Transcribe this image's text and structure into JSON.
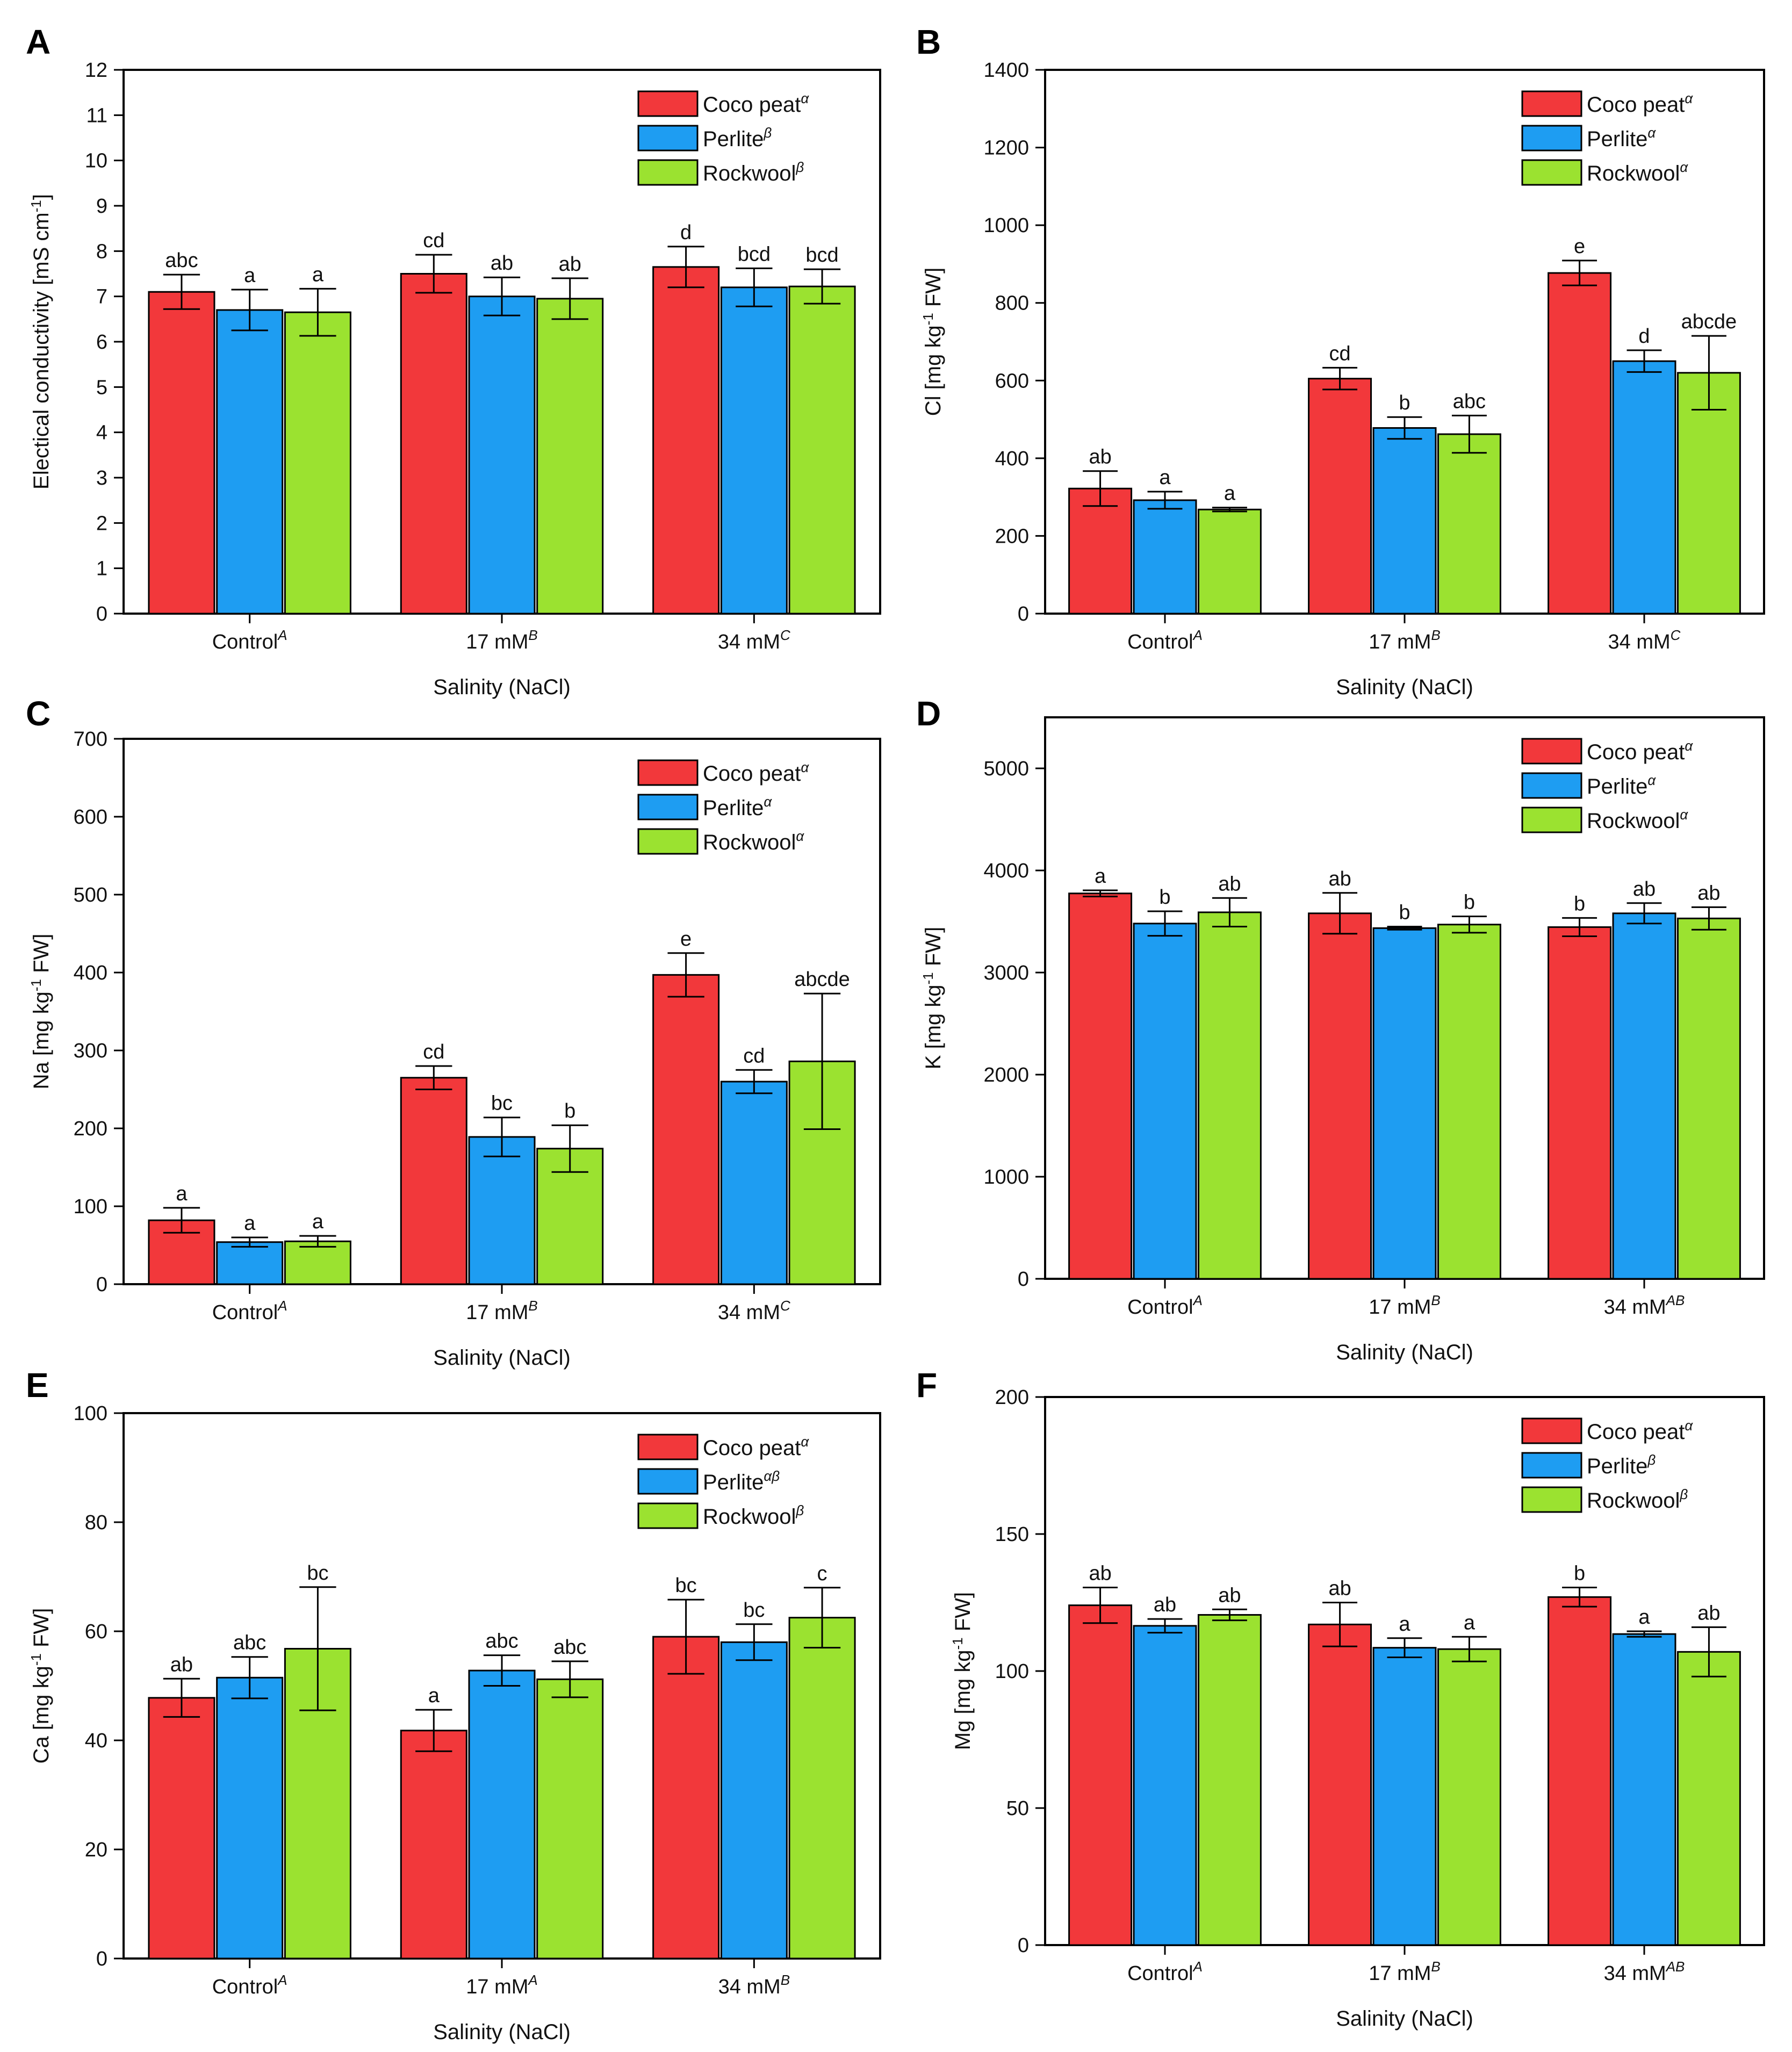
{
  "palette": {
    "coco": "#f2383b",
    "perlite": "#1e9df2",
    "rockwool": "#9be230"
  },
  "chart_data": [
    {
      "panel": "A",
      "type": "bar",
      "ylabel": "Electical conductivity [mS cm-1]",
      "ylabel_parts": [
        "Electical conductivity [mS cm",
        "-1",
        "]"
      ],
      "xlabel": "Salinity (NaCl)",
      "ylim": [
        0,
        12
      ],
      "yticks": [
        "0",
        "1",
        "2",
        "3",
        "4",
        "5",
        "6",
        "7",
        "8",
        "9",
        "10",
        "11",
        "12"
      ],
      "categories": [
        {
          "label": "Control",
          "sup": "A"
        },
        {
          "label": "17 mM",
          "sup": "B"
        },
        {
          "label": "34 mM",
          "sup": "C"
        }
      ],
      "series": [
        {
          "name": "Coco peat",
          "sup": "α",
          "values": [
            7.1,
            7.5,
            7.65
          ],
          "errors": [
            0.38,
            0.42,
            0.45
          ],
          "letters": [
            "abc",
            "cd",
            "d"
          ]
        },
        {
          "name": "Perlite",
          "sup": "β",
          "values": [
            6.7,
            7.0,
            7.2
          ],
          "errors": [
            0.45,
            0.42,
            0.42
          ],
          "letters": [
            "a",
            "ab",
            "bcd"
          ]
        },
        {
          "name": "Rockwool",
          "sup": "β",
          "values": [
            6.65,
            6.95,
            7.22
          ],
          "errors": [
            0.52,
            0.45,
            0.38
          ],
          "letters": [
            "a",
            "ab",
            "bcd"
          ]
        }
      ]
    },
    {
      "panel": "B",
      "type": "bar",
      "ylabel": "Cl [mg kg-1 FW]",
      "ylabel_parts": [
        "Cl [mg kg",
        "-1",
        " FW]"
      ],
      "xlabel": "Salinity (NaCl)",
      "ylim": [
        0,
        1400
      ],
      "yticks": [
        "0",
        "200",
        "400",
        "600",
        "800",
        "1000",
        "1200",
        "1400"
      ],
      "categories": [
        {
          "label": "Control",
          "sup": "A"
        },
        {
          "label": "17 mM",
          "sup": "B"
        },
        {
          "label": "34 mM",
          "sup": "C"
        }
      ],
      "series": [
        {
          "name": "Coco peat",
          "sup": "α",
          "values": [
            322,
            605,
            877
          ],
          "errors": [
            45,
            28,
            32
          ],
          "letters": [
            "ab",
            "cd",
            "e"
          ]
        },
        {
          "name": "Perlite",
          "sup": "α",
          "values": [
            292,
            478,
            650
          ],
          "errors": [
            22,
            28,
            28
          ],
          "letters": [
            "a",
            "b",
            "d"
          ]
        },
        {
          "name": "Rockwool",
          "sup": "α",
          "values": [
            268,
            462,
            620
          ],
          "errors": [
            5,
            48,
            95
          ],
          "letters": [
            "a",
            "abc",
            "abcde"
          ]
        }
      ]
    },
    {
      "panel": "C",
      "type": "bar",
      "ylabel": "Na [mg kg-1 FW]",
      "ylabel_parts": [
        "Na [mg kg",
        "-1",
        " FW]"
      ],
      "xlabel": "Salinity (NaCl)",
      "ylim": [
        0,
        700
      ],
      "yticks": [
        "0",
        "100",
        "200",
        "300",
        "400",
        "500",
        "600",
        "700"
      ],
      "categories": [
        {
          "label": "Control",
          "sup": "A"
        },
        {
          "label": "17 mM",
          "sup": "B"
        },
        {
          "label": "34 mM",
          "sup": "C"
        }
      ],
      "series": [
        {
          "name": "Coco peat",
          "sup": "α",
          "values": [
            82,
            265,
            397
          ],
          "errors": [
            16,
            15,
            28
          ],
          "letters": [
            "a",
            "cd",
            "e"
          ]
        },
        {
          "name": "Perlite",
          "sup": "α",
          "values": [
            54,
            189,
            260
          ],
          "errors": [
            6,
            25,
            15
          ],
          "letters": [
            "a",
            "bc",
            "cd"
          ]
        },
        {
          "name": "Rockwool",
          "sup": "α",
          "values": [
            55,
            174,
            286
          ],
          "errors": [
            7,
            30,
            87
          ],
          "letters": [
            "a",
            "b",
            "abcde"
          ]
        }
      ]
    },
    {
      "panel": "D",
      "type": "bar",
      "ylabel": "K [mg kg-1 FW]",
      "ylabel_parts": [
        "K [mg kg",
        "-1",
        " FW]"
      ],
      "xlabel": "Salinity (NaCl)",
      "ylim": [
        0,
        5500
      ],
      "yticks": [
        "0",
        "1000",
        "2000",
        "3000",
        "4000",
        "5000"
      ],
      "tickvals": [
        0,
        1000,
        2000,
        3000,
        4000,
        5000
      ],
      "categories": [
        {
          "label": "Control",
          "sup": "A"
        },
        {
          "label": "17 mM",
          "sup": "B"
        },
        {
          "label": "34 mM",
          "sup": "AB"
        }
      ],
      "series": [
        {
          "name": "Coco peat",
          "sup": "α",
          "values": [
            3775,
            3580,
            3445
          ],
          "errors": [
            30,
            200,
            90
          ],
          "letters": [
            "a",
            "ab",
            "b"
          ]
        },
        {
          "name": "Perlite",
          "sup": "α",
          "values": [
            3480,
            3435,
            3580
          ],
          "errors": [
            120,
            15,
            100
          ],
          "letters": [
            "b",
            "b",
            "ab"
          ]
        },
        {
          "name": "Rockwool",
          "sup": "α",
          "values": [
            3590,
            3470,
            3530
          ],
          "errors": [
            140,
            80,
            110
          ],
          "letters": [
            "ab",
            "b",
            "ab"
          ]
        }
      ]
    },
    {
      "panel": "E",
      "type": "bar",
      "ylabel": "Ca [mg kg-1 FW]",
      "ylabel_parts": [
        "Ca [mg kg",
        "-1",
        " FW]"
      ],
      "xlabel": "Salinity (NaCl)",
      "ylim": [
        0,
        100
      ],
      "yticks": [
        "0",
        "20",
        "40",
        "60",
        "80",
        "100"
      ],
      "categories": [
        {
          "label": "Control",
          "sup": "A"
        },
        {
          "label": "17 mM",
          "sup": "A"
        },
        {
          "label": "34 mM",
          "sup": "B"
        }
      ],
      "series": [
        {
          "name": "Coco peat",
          "sup": "α",
          "values": [
            47.8,
            41.8,
            59
          ],
          "errors": [
            3.5,
            3.8,
            6.8
          ],
          "letters": [
            "ab",
            "a",
            "bc"
          ]
        },
        {
          "name": "Perlite",
          "sup": "αβ",
          "values": [
            51.5,
            52.8,
            58
          ],
          "errors": [
            3.8,
            2.8,
            3.3
          ],
          "letters": [
            "abc",
            "abc",
            "bc"
          ]
        },
        {
          "name": "Rockwool",
          "sup": "β",
          "values": [
            56.8,
            51.2,
            62.5
          ],
          "errors": [
            11.3,
            3.3,
            5.5
          ],
          "letters": [
            "bc",
            "abc",
            "c"
          ]
        }
      ]
    },
    {
      "panel": "F",
      "type": "bar",
      "ylabel": "Mg [mg kg-1 FW]",
      "ylabel_parts": [
        "Mg [mg kg",
        "-1",
        " FW]"
      ],
      "xlabel": "Salinity (NaCl)",
      "ylim": [
        0,
        200
      ],
      "yticks": [
        "0",
        "50",
        "100",
        "150",
        "200"
      ],
      "categories": [
        {
          "label": "Control",
          "sup": "A"
        },
        {
          "label": "17 mM",
          "sup": "B"
        },
        {
          "label": "34 mM",
          "sup": "AB"
        }
      ],
      "series": [
        {
          "name": "Coco peat",
          "sup": "α",
          "values": [
            124,
            117,
            127
          ],
          "errors": [
            6.5,
            8,
            3.5
          ],
          "letters": [
            "ab",
            "ab",
            "b"
          ]
        },
        {
          "name": "Perlite",
          "sup": "β",
          "values": [
            116.5,
            108.5,
            113.5
          ],
          "errors": [
            2.5,
            3.5,
            1
          ],
          "letters": [
            "ab",
            "a",
            "a"
          ]
        },
        {
          "name": "Rockwool",
          "sup": "β",
          "values": [
            120.5,
            108,
            107
          ],
          "errors": [
            2,
            4.5,
            9
          ],
          "letters": [
            "ab",
            "a",
            "ab"
          ]
        }
      ]
    }
  ]
}
